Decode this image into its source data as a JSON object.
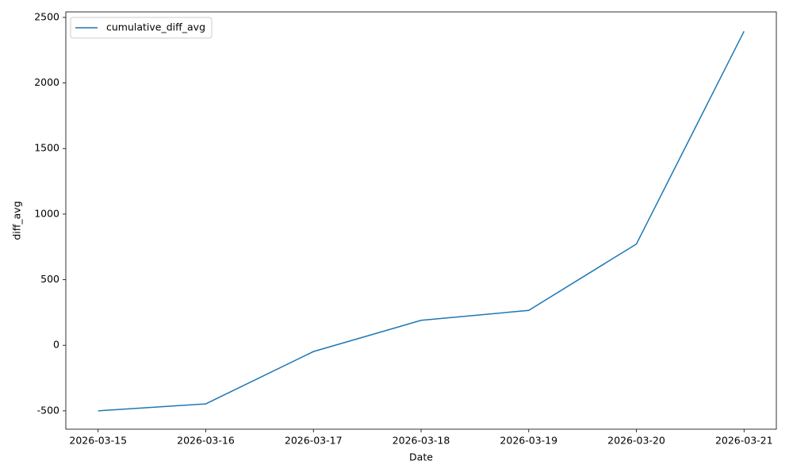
{
  "chart_data": {
    "type": "line",
    "xlabel": "Date",
    "ylabel": "diff_avg",
    "categories": [
      "2026-03-15",
      "2026-03-16",
      "2026-03-17",
      "2026-03-18",
      "2026-03-19",
      "2026-03-20",
      "2026-03-21"
    ],
    "series": [
      {
        "name": "cumulative_diff_avg",
        "color": "#1f77b4",
        "values": [
          -500,
          -447,
          -48,
          190,
          266,
          772,
          2394
        ]
      }
    ],
    "ylim": [
      -640,
      2542
    ],
    "yticks": [
      -500,
      0,
      500,
      1000,
      1500,
      2000,
      2500
    ],
    "legend": "upper left",
    "grid": false
  }
}
